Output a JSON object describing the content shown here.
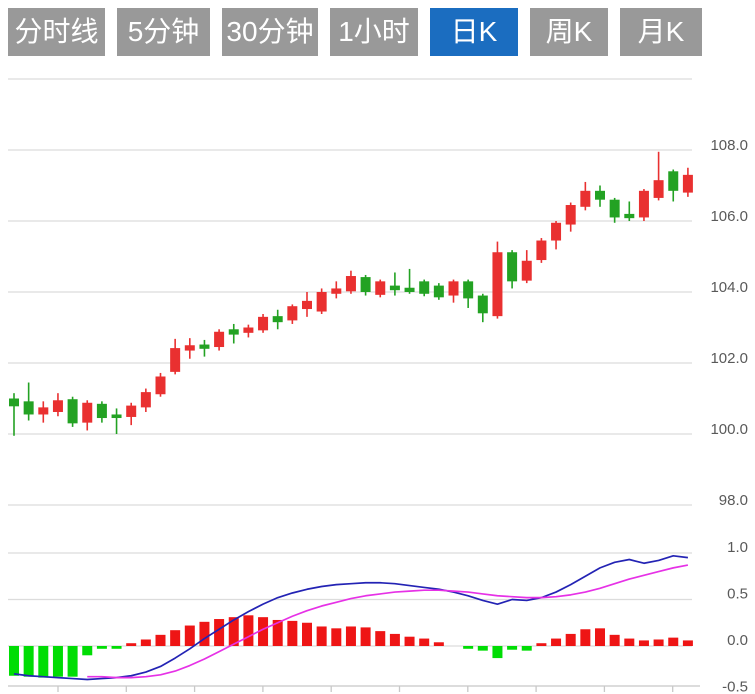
{
  "tabs": [
    {
      "id": "fenshixian",
      "label": "分时线",
      "active": false
    },
    {
      "id": "5min",
      "label": "5分钟",
      "active": false
    },
    {
      "id": "30min",
      "label": "30分钟",
      "active": false
    },
    {
      "id": "1hour",
      "label": "1小时",
      "active": false
    },
    {
      "id": "daily",
      "label": "日K",
      "active": true
    },
    {
      "id": "weekly",
      "label": "周K",
      "active": false
    },
    {
      "id": "monthly",
      "label": "月K",
      "active": false
    }
  ],
  "chart_data": {
    "type": "candlestick",
    "title": "",
    "subtitle": "MACD sub-chart",
    "price_axis": {
      "tick_labels": [
        "108.0",
        "106.0",
        "104.0",
        "102.0",
        "100.0",
        "98.0"
      ],
      "tick_values": [
        108,
        106,
        104,
        102,
        100,
        98
      ],
      "grid_values": [
        110,
        108,
        106,
        104,
        102,
        100,
        98
      ],
      "range": [
        97.5,
        110.0
      ],
      "position": "right"
    },
    "macd_axis": {
      "tick_labels": [
        "1.0",
        "0.5",
        "0.0",
        "-0.5"
      ],
      "tick_values": [
        1.0,
        0.5,
        0.0,
        -0.5
      ],
      "grid_values": [
        1.0,
        0.5,
        0.0
      ],
      "range": [
        -0.5,
        1.0
      ],
      "position": "right"
    },
    "colors": {
      "up": "#e93030",
      "down": "#23a223",
      "hist_up": "#ee1515",
      "hist_down": "#00dd04",
      "dif_line": "#2323b4",
      "dea_line": "#e631e6",
      "grid": "#dcdcdc",
      "axis": "#c8c8c8",
      "label": "#595959",
      "tab_bg": "#999999",
      "tab_active_bg": "#1b6dc0"
    },
    "candles_ohlc": [
      [
        101.0,
        101.15,
        99.95,
        100.78
      ],
      [
        100.92,
        101.45,
        100.38,
        100.55
      ],
      [
        100.55,
        100.92,
        100.32,
        100.75
      ],
      [
        100.62,
        101.15,
        100.5,
        100.95
      ],
      [
        100.98,
        101.05,
        100.2,
        100.3
      ],
      [
        100.32,
        100.95,
        100.1,
        100.88
      ],
      [
        100.85,
        100.92,
        100.32,
        100.45
      ],
      [
        100.55,
        100.72,
        100.0,
        100.45
      ],
      [
        100.48,
        100.88,
        100.25,
        100.8
      ],
      [
        100.75,
        101.28,
        100.62,
        101.18
      ],
      [
        101.12,
        101.72,
        101.05,
        101.62
      ],
      [
        101.75,
        102.68,
        101.68,
        102.42
      ],
      [
        102.35,
        102.7,
        102.12,
        102.5
      ],
      [
        102.52,
        102.65,
        102.18,
        102.4
      ],
      [
        102.45,
        102.95,
        102.35,
        102.88
      ],
      [
        102.95,
        103.1,
        102.55,
        102.8
      ],
      [
        102.85,
        103.08,
        102.72,
        103.0
      ],
      [
        102.92,
        103.38,
        102.85,
        103.3
      ],
      [
        103.32,
        103.5,
        102.95,
        103.15
      ],
      [
        103.2,
        103.65,
        103.1,
        103.6
      ],
      [
        103.52,
        104.0,
        103.3,
        103.75
      ],
      [
        103.45,
        104.1,
        103.38,
        104.0
      ],
      [
        103.95,
        104.3,
        103.82,
        104.1
      ],
      [
        104.02,
        104.6,
        103.95,
        104.45
      ],
      [
        104.42,
        104.48,
        103.9,
        104.0
      ],
      [
        103.92,
        104.35,
        103.85,
        104.3
      ],
      [
        104.18,
        104.55,
        103.9,
        104.05
      ],
      [
        104.12,
        104.65,
        103.95,
        104.0
      ],
      [
        104.3,
        104.35,
        103.88,
        103.95
      ],
      [
        104.18,
        104.25,
        103.78,
        103.85
      ],
      [
        103.9,
        104.35,
        103.7,
        104.3
      ],
      [
        104.3,
        104.35,
        103.55,
        103.82
      ],
      [
        103.9,
        103.95,
        103.15,
        103.4
      ],
      [
        103.32,
        105.42,
        103.25,
        105.12
      ],
      [
        105.12,
        105.18,
        104.1,
        104.3
      ],
      [
        104.32,
        105.18,
        104.25,
        104.88
      ],
      [
        104.9,
        105.52,
        104.82,
        105.45
      ],
      [
        105.45,
        106.0,
        105.2,
        105.95
      ],
      [
        105.9,
        106.52,
        105.7,
        106.45
      ],
      [
        106.4,
        107.1,
        106.3,
        106.85
      ],
      [
        106.85,
        107.0,
        106.4,
        106.6
      ],
      [
        106.6,
        106.65,
        105.95,
        106.1
      ],
      [
        106.2,
        106.55,
        106.0,
        106.08
      ],
      [
        106.1,
        106.9,
        106.0,
        106.85
      ],
      [
        106.65,
        107.95,
        106.58,
        107.15
      ],
      [
        107.4,
        107.45,
        106.55,
        106.85
      ],
      [
        106.8,
        107.5,
        106.68,
        107.3
      ]
    ],
    "macd": {
      "hist": [
        -0.32,
        -0.33,
        -0.34,
        -0.33,
        -0.33,
        -0.1,
        -0.03,
        -0.03,
        0.03,
        0.07,
        0.12,
        0.17,
        0.22,
        0.26,
        0.29,
        0.31,
        0.33,
        0.31,
        0.28,
        0.27,
        0.25,
        0.21,
        0.19,
        0.21,
        0.2,
        0.16,
        0.13,
        0.1,
        0.08,
        0.04,
        0.0,
        -0.03,
        -0.05,
        -0.13,
        -0.04,
        -0.05,
        0.03,
        0.08,
        0.13,
        0.18,
        0.19,
        0.12,
        0.08,
        0.06,
        0.07,
        0.09,
        0.06
      ],
      "dif": [
        -0.3,
        -0.32,
        -0.33,
        -0.34,
        -0.35,
        -0.36,
        -0.35,
        -0.34,
        -0.32,
        -0.28,
        -0.22,
        -0.13,
        -0.03,
        0.08,
        0.18,
        0.28,
        0.37,
        0.45,
        0.52,
        0.57,
        0.61,
        0.64,
        0.66,
        0.67,
        0.68,
        0.68,
        0.67,
        0.65,
        0.63,
        0.61,
        0.58,
        0.54,
        0.49,
        0.45,
        0.5,
        0.49,
        0.52,
        0.58,
        0.66,
        0.75,
        0.84,
        0.9,
        0.93,
        0.89,
        0.92,
        0.97,
        0.95
      ],
      "dea": [
        null,
        null,
        null,
        null,
        null,
        -0.33,
        -0.33,
        -0.34,
        -0.34,
        -0.33,
        -0.31,
        -0.27,
        -0.21,
        -0.14,
        -0.06,
        0.02,
        0.1,
        0.18,
        0.25,
        0.32,
        0.38,
        0.43,
        0.47,
        0.51,
        0.54,
        0.56,
        0.58,
        0.59,
        0.6,
        0.6,
        0.59,
        0.58,
        0.56,
        0.54,
        0.53,
        0.52,
        0.52,
        0.53,
        0.55,
        0.58,
        0.62,
        0.67,
        0.72,
        0.76,
        0.8,
        0.84,
        0.87
      ]
    },
    "legend": [],
    "grid": true
  }
}
